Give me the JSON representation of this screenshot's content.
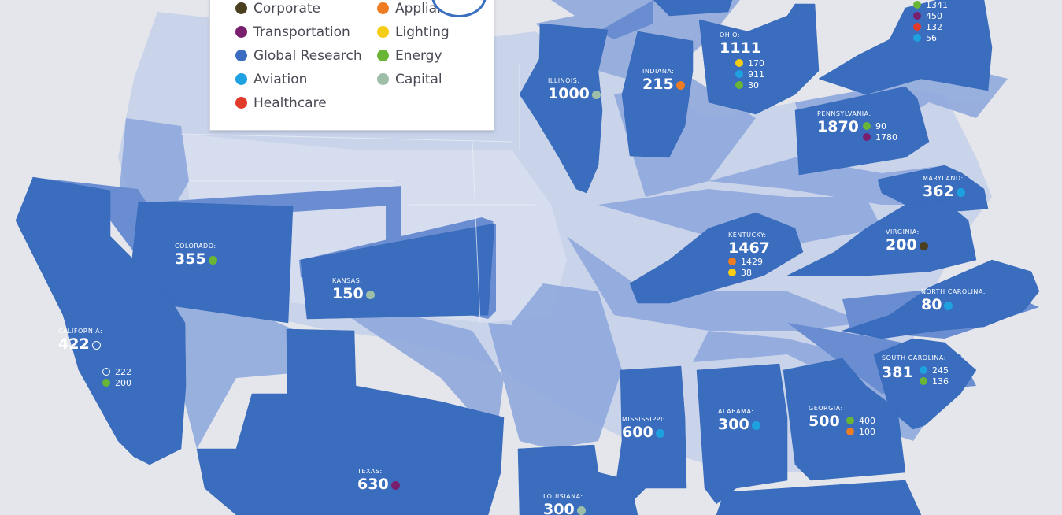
{
  "colors": {
    "state": "#3a6cbf",
    "state_light": "#8fa9de",
    "state_mid": "#6489d0",
    "base": "#c5cfe6",
    "bg": "#e4e6ec",
    "corporate": "#4a4020",
    "transportation": "#7a1f6e",
    "global_research": "#3a6cbf",
    "aviation": "#1da1e0",
    "healthcare": "#e23a2a",
    "appliances": "#ee7c22",
    "lighting": "#f5cd14",
    "energy": "#6ab536",
    "capital": "#9dbfa8"
  },
  "legend": {
    "left": [
      {
        "label": "Corporate",
        "color": "#4a4020",
        "icon": "dot-icon"
      },
      {
        "label": "Transportation",
        "color": "#7a1f6e",
        "icon": "dot-icon"
      },
      {
        "label": "Global Research",
        "color": "#3a6cbf",
        "icon": "dot-icon"
      },
      {
        "label": "Aviation",
        "color": "#1da1e0",
        "icon": "dot-icon"
      },
      {
        "label": "Healthcare",
        "color": "#e23a2a",
        "icon": "dot-icon"
      }
    ],
    "right": [
      {
        "label": "Appliances",
        "color": "#ee7c22",
        "icon": "dot-icon"
      },
      {
        "label": "Lighting",
        "color": "#f5cd14",
        "icon": "dot-icon"
      },
      {
        "label": "Energy",
        "color": "#6ab536",
        "icon": "dot-icon"
      },
      {
        "label": "Capital",
        "color": "#9dbfa8",
        "icon": "dot-icon"
      }
    ]
  },
  "states": {
    "illinois": {
      "name": "ILLINOIS:",
      "total": "1000",
      "dot": "#9dbfa8"
    },
    "indiana": {
      "name": "INDIANA:",
      "total": "215",
      "dot": "#ee7c22"
    },
    "ohio": {
      "name": "OHIO:",
      "total": "1111",
      "subs": [
        {
          "v": "170",
          "c": "#f5cd14"
        },
        {
          "v": "911",
          "c": "#1da1e0"
        },
        {
          "v": "30",
          "c": "#6ab536"
        }
      ]
    },
    "newyork": {
      "subs": [
        {
          "v": "1341",
          "c": "#6ab536"
        },
        {
          "v": "450",
          "c": "#7a1f6e"
        },
        {
          "v": "132",
          "c": "#e23a2a"
        },
        {
          "v": "56",
          "c": "#1da1e0"
        }
      ]
    },
    "pennsylvania": {
      "name": "PENNSYLVANIA:",
      "total": "1870",
      "subs": [
        {
          "v": "90",
          "c": "#6ab536"
        },
        {
          "v": "1780",
          "c": "#7a1f6e"
        }
      ]
    },
    "maryland": {
      "name": "MARYLAND:",
      "total": "362",
      "dot": "#1da1e0"
    },
    "colorado": {
      "name": "COLORADO:",
      "total": "355",
      "dot": "#6ab536"
    },
    "kansas": {
      "name": "KANSAS:",
      "total": "150",
      "dot": "#9dbfa8"
    },
    "kentucky": {
      "name": "KENTUCKY:",
      "total": "1467",
      "subs": [
        {
          "v": "1429",
          "c": "#ee7c22"
        },
        {
          "v": "38",
          "c": "#f5cd14"
        }
      ]
    },
    "virginia": {
      "name": "VIRGINIA:",
      "total": "200",
      "dot": "#4a4020"
    },
    "northcarolina": {
      "name": "NORTH CAROLINA:",
      "total": "80",
      "dot": "#1da1e0"
    },
    "california": {
      "name": "CALIFORNIA:",
      "total": "422",
      "dot": "#ffffff",
      "subs": [
        {
          "v": "222",
          "c": "#3a6cbf"
        },
        {
          "v": "200",
          "c": "#6ab536"
        }
      ]
    },
    "southcarolina": {
      "name": "SOUTH CAROLINA:",
      "total": "381",
      "subs": [
        {
          "v": "245",
          "c": "#1da1e0"
        },
        {
          "v": "136",
          "c": "#6ab536"
        }
      ]
    },
    "mississippi": {
      "name": "MISSISSIPPI:",
      "total": "600",
      "dot": "#1da1e0"
    },
    "alabama": {
      "name": "ALABAMA:",
      "total": "300",
      "dot": "#1da1e0"
    },
    "georgia": {
      "name": "GEORGIA:",
      "total": "500",
      "subs": [
        {
          "v": "400",
          "c": "#6ab536"
        },
        {
          "v": "100",
          "c": "#ee7c22"
        }
      ]
    },
    "texas": {
      "name": "TEXAS:",
      "total": "630",
      "dot": "#7a1f6e"
    },
    "louisiana": {
      "name": "LOUISIANA:",
      "total": "300",
      "dot": "#9dbfa8"
    }
  }
}
